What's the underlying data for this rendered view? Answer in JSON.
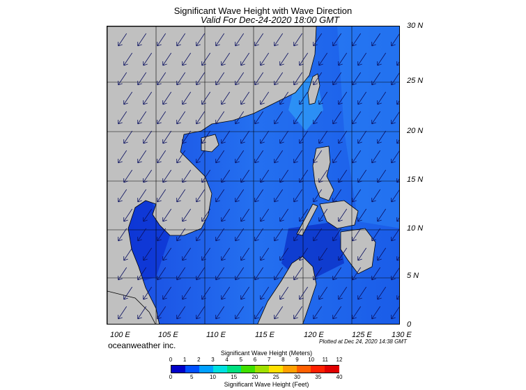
{
  "title": "Significant Wave Height with Wave Direction",
  "subtitle": "Valid For Dec-24-2020 18:00 GMT",
  "credit": "oceanweather inc.",
  "plotted": "Plotted at Dec 24, 2020 14:38 GMT",
  "map": {
    "lon_range": [
      100,
      130
    ],
    "lat_range": [
      0,
      30
    ],
    "lon_labels": [
      "100 E",
      "105 E",
      "110 E",
      "115 E",
      "120 E",
      "125 E",
      "130 E"
    ],
    "lat_labels": [
      "30 N",
      "25 N",
      "20 N",
      "15 N",
      "10 N",
      "5 N",
      "0"
    ],
    "land_color": "#c0c0c0",
    "sea_color": "#1f5fe8",
    "wave_direction": "from north-east"
  },
  "colorbar": {
    "title_meters": "Significant Wave Height (Meters)",
    "title_feet": "Significant Wave Height (Feet)",
    "meter_ticks": [
      "0",
      "1",
      "2",
      "3",
      "4",
      "5",
      "6",
      "7",
      "8",
      "9",
      "10",
      "11",
      "12"
    ],
    "feet_ticks": [
      "0",
      "5",
      "10",
      "15",
      "20",
      "25",
      "30",
      "35",
      "40"
    ],
    "colors": [
      "#0000c8",
      "#0050ff",
      "#00a0ff",
      "#00e0e0",
      "#00e080",
      "#40e000",
      "#a0e000",
      "#ffe000",
      "#ffa000",
      "#ff6000",
      "#ff2000",
      "#e00000"
    ]
  }
}
